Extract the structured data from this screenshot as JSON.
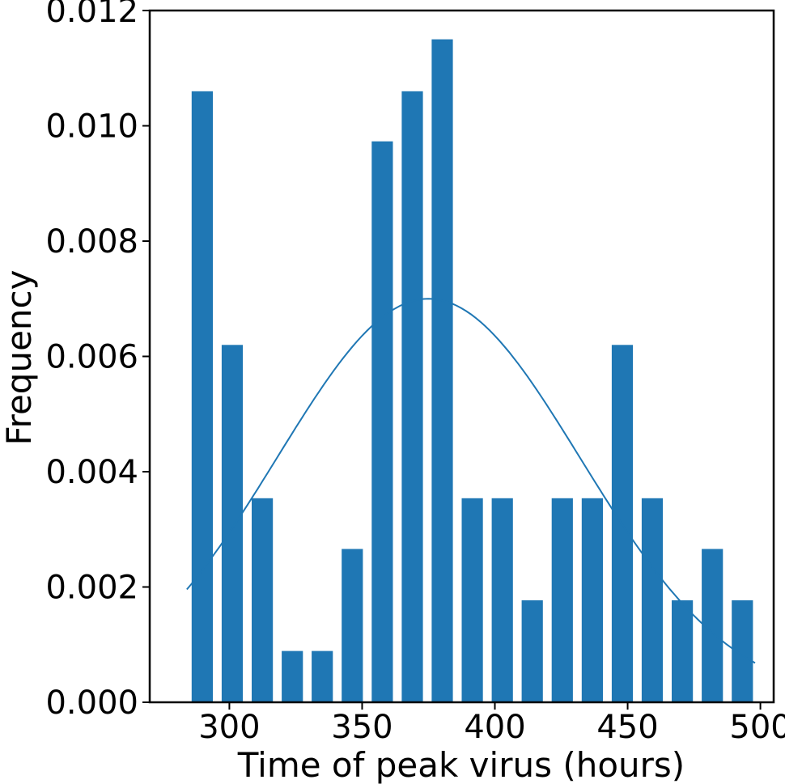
{
  "chart_data": {
    "type": "bar",
    "title": "",
    "xlabel": "Time of peak virus (hours)",
    "ylabel": "Frequency",
    "xlim": [
      270,
      505
    ],
    "ylim": [
      0,
      0.012
    ],
    "xticks": [
      300,
      350,
      400,
      450,
      500
    ],
    "xtick_labels": [
      "300",
      "350",
      "400",
      "450",
      "500"
    ],
    "yticks": [
      0,
      0.002,
      0.004,
      0.006,
      0.008,
      0.01,
      0.012
    ],
    "ytick_labels": [
      "0.000",
      "0.002",
      "0.004",
      "0.006",
      "0.008",
      "0.010",
      "0.012"
    ],
    "bar_color": "#1f77b4",
    "line_color": "#1f77b4",
    "grid": false,
    "bins": [
      {
        "x": 289.8,
        "value": 0.0106
      },
      {
        "x": 301.1,
        "value": 0.0062
      },
      {
        "x": 312.4,
        "value": 0.00354
      },
      {
        "x": 323.7,
        "value": 0.00089
      },
      {
        "x": 335.0,
        "value": 0.00089
      },
      {
        "x": 346.3,
        "value": 0.00266
      },
      {
        "x": 357.6,
        "value": 0.00973
      },
      {
        "x": 368.9,
        "value": 0.0106
      },
      {
        "x": 380.2,
        "value": 0.0115
      },
      {
        "x": 391.5,
        "value": 0.00354
      },
      {
        "x": 402.8,
        "value": 0.00354
      },
      {
        "x": 414.1,
        "value": 0.00177
      },
      {
        "x": 425.4,
        "value": 0.00354
      },
      {
        "x": 436.7,
        "value": 0.00354
      },
      {
        "x": 448.0,
        "value": 0.0062
      },
      {
        "x": 459.3,
        "value": 0.00354
      },
      {
        "x": 470.6,
        "value": 0.00177
      },
      {
        "x": 481.9,
        "value": 0.00266
      },
      {
        "x": 493.2,
        "value": 0.00177
      }
    ],
    "bar_width": 8,
    "density_curve": {
      "type": "line",
      "mean": 375,
      "std": 57,
      "peak": 0.007,
      "x_start": 284,
      "x_end": 498
    }
  }
}
